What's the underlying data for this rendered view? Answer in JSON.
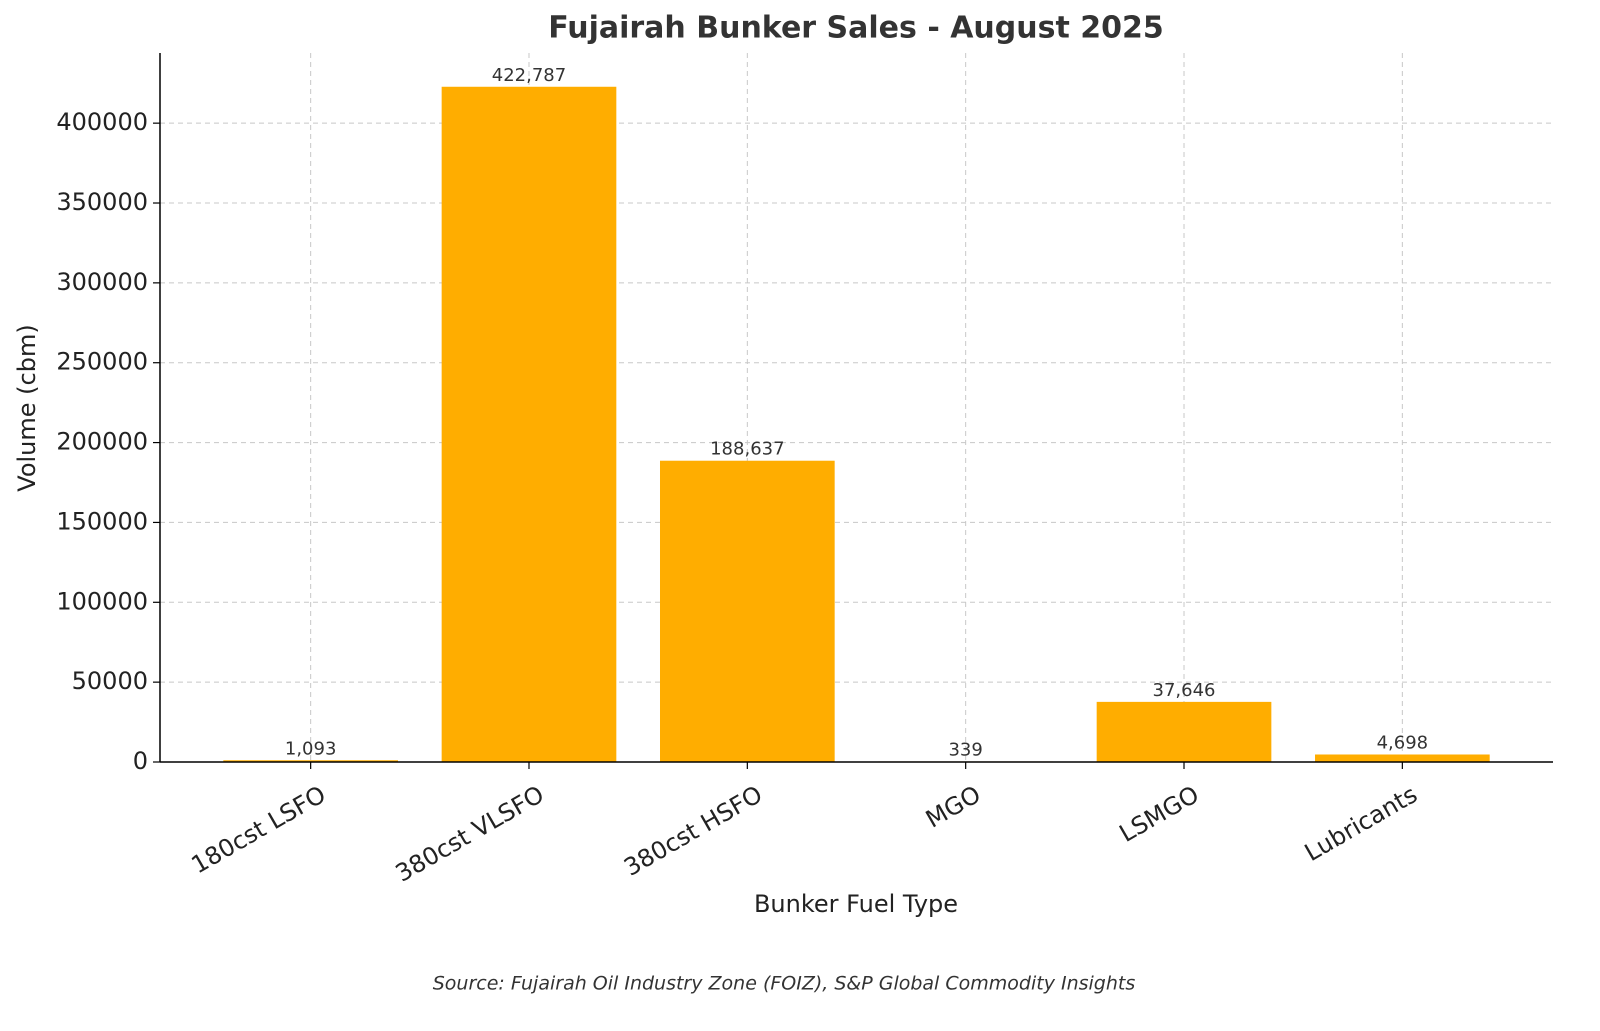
{
  "chart_data": {
    "type": "bar",
    "title": "Fujairah Bunker Sales - August 2025",
    "x_label": "Bunker Fuel Type",
    "y_label": "Volume (cbm)",
    "source": "Source: Fujairah Oil Industry Zone (FOIZ), S&P Global Commodity Insights",
    "categories": [
      "180cst LSFO",
      "380cst VLSFO",
      "380cst HSFO",
      "MGO",
      "LSMGO",
      "Lubricants"
    ],
    "values": [
      1093,
      422787,
      188637,
      339,
      37646,
      4698
    ],
    "value_labels": [
      "1,093",
      "422,787",
      "188,637",
      "339",
      "37,646",
      "4,698"
    ],
    "color": "#ffad00",
    "ylim": [
      0,
      443926
    ],
    "yticks": [
      0,
      50000,
      100000,
      150000,
      200000,
      250000,
      300000,
      350000,
      400000
    ],
    "grid": true
  }
}
